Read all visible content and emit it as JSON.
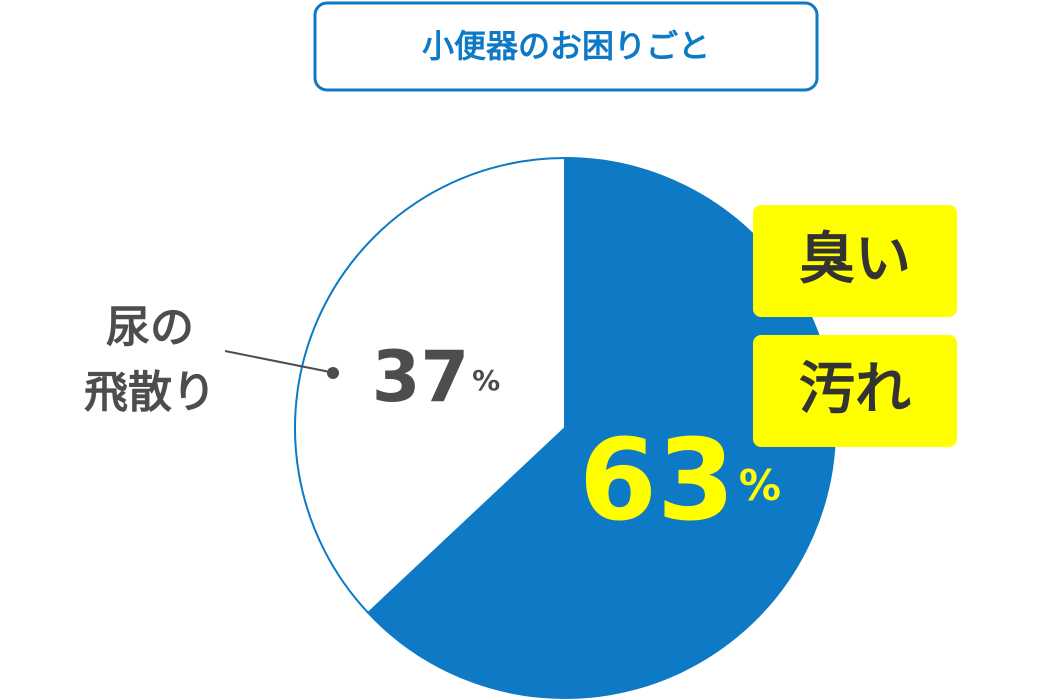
{
  "chart_data": {
    "type": "pie",
    "title": "小便器のお困りごと",
    "categories": [
      [
        "臭い",
        "汚れ"
      ],
      [
        "尿の",
        "飛散り"
      ]
    ],
    "values": [
      63,
      37
    ],
    "unit": "%",
    "colors": [
      "#0e79c4",
      "#ffffff"
    ]
  }
}
